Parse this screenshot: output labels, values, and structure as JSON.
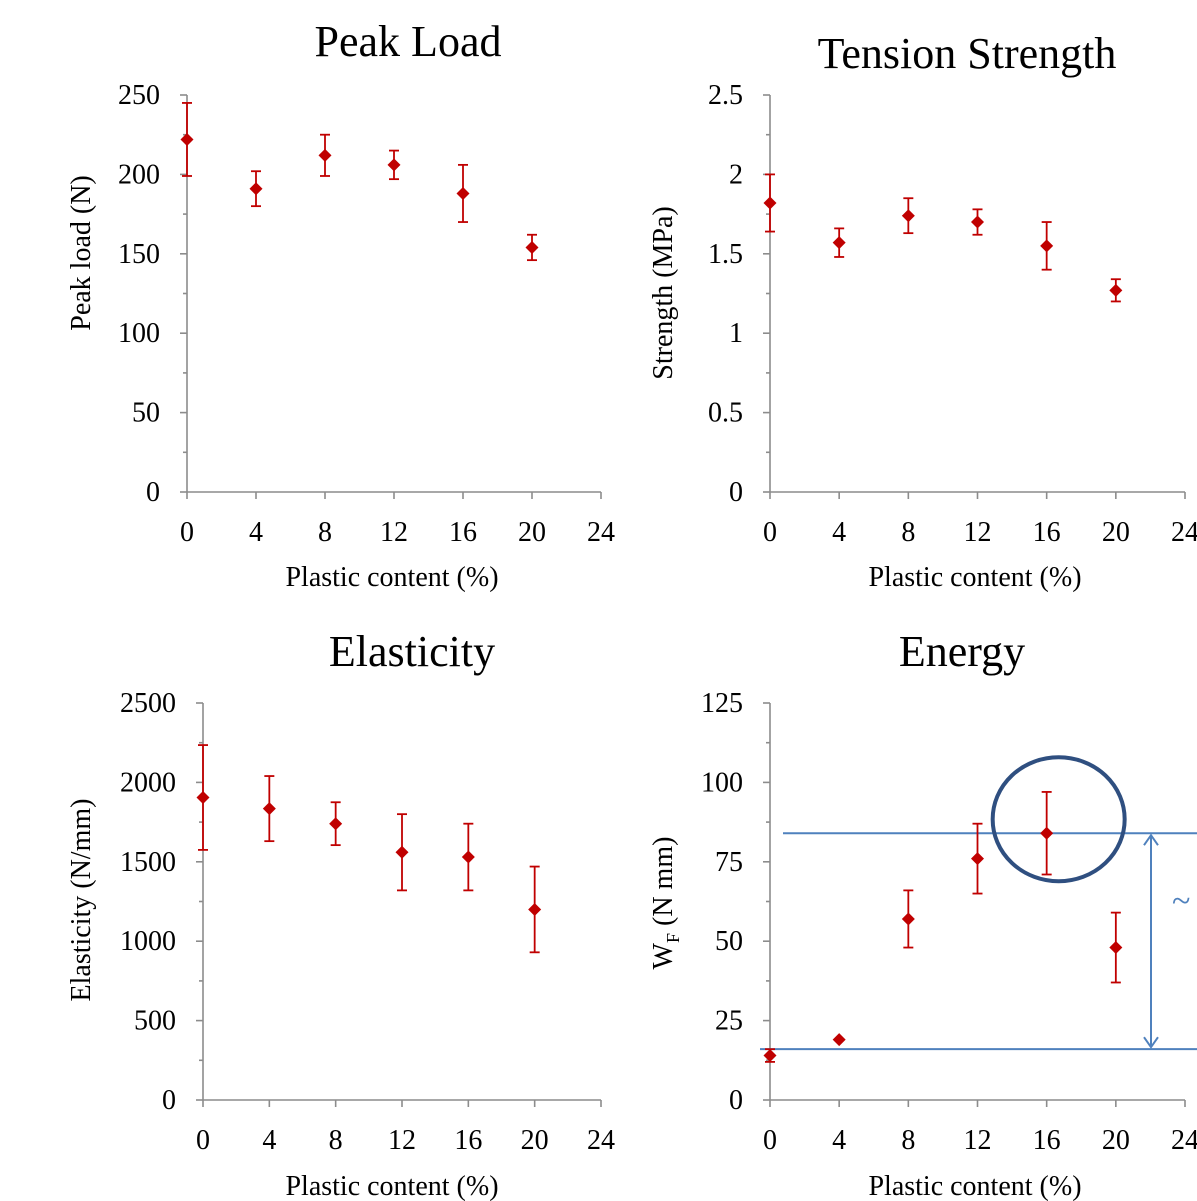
{
  "chart_data": [
    {
      "type": "scatter",
      "title": "Peak Load",
      "xlabel": "Plastic content (%)",
      "ylabel": "Peak load (N)",
      "xlim": [
        0,
        24
      ],
      "ylim": [
        0,
        250
      ],
      "xticks": [
        "0",
        "4",
        "8",
        "12",
        "16",
        "20",
        "24"
      ],
      "yticks": [
        "0",
        "50",
        "100",
        "150",
        "200",
        "250"
      ],
      "x": [
        0,
        4,
        8,
        12,
        16,
        20
      ],
      "y": [
        222,
        191,
        212,
        206,
        188,
        154
      ],
      "err": [
        23,
        11,
        13,
        9,
        18,
        8
      ],
      "colors": {
        "marker": "#c00000"
      }
    },
    {
      "type": "scatter",
      "title": "Tension Strength",
      "xlabel": "Plastic content (%)",
      "ylabel": "Strength (MPa)",
      "xlim": [
        0,
        24
      ],
      "ylim": [
        0,
        2.5
      ],
      "xticks": [
        "0",
        "4",
        "8",
        "12",
        "16",
        "20",
        "24"
      ],
      "yticks": [
        "0",
        "0.5",
        "1",
        "1.5",
        "2",
        "2.5"
      ],
      "x": [
        0,
        4,
        8,
        12,
        16,
        20
      ],
      "y": [
        1.82,
        1.57,
        1.74,
        1.7,
        1.55,
        1.27
      ],
      "err": [
        0.18,
        0.09,
        0.11,
        0.08,
        0.15,
        0.07
      ],
      "colors": {
        "marker": "#c00000"
      }
    },
    {
      "type": "scatter",
      "title": "Elasticity",
      "xlabel": "Plastic content (%)",
      "ylabel": "Elasticity (N/mm)",
      "xlim": [
        0,
        24
      ],
      "ylim": [
        0,
        2500
      ],
      "xticks": [
        "0",
        "4",
        "8",
        "12",
        "16",
        "20",
        "24"
      ],
      "yticks": [
        "0",
        "500",
        "1000",
        "1500",
        "2000",
        "2500"
      ],
      "x": [
        0,
        4,
        8,
        12,
        16,
        20
      ],
      "y": [
        1905,
        1835,
        1740,
        1560,
        1530,
        1200
      ],
      "err": [
        330,
        205,
        135,
        240,
        210,
        270
      ],
      "colors": {
        "marker": "#c00000"
      }
    },
    {
      "type": "scatter",
      "title": "Energy",
      "xlabel": "Plastic content (%)",
      "ylabel_main": "W",
      "ylabel_sub": "F",
      "ylabel_rest": " (N mm)",
      "xlim": [
        0,
        24
      ],
      "ylim": [
        0,
        125
      ],
      "xticks": [
        "0",
        "4",
        "8",
        "12",
        "16",
        "20",
        "24"
      ],
      "yticks": [
        "0",
        "25",
        "50",
        "75",
        "100",
        "125"
      ],
      "x": [
        0,
        4,
        8,
        12,
        16,
        20
      ],
      "y": [
        14,
        19,
        57,
        76,
        84,
        48
      ],
      "err": [
        2,
        0,
        9,
        11,
        13,
        11
      ],
      "annotation": {
        "upper_line_y": 84,
        "lower_line_y": 16,
        "circled_x": 16,
        "symbol": "~"
      },
      "colors": {
        "marker": "#c00000",
        "annotation": "#4f81bd"
      }
    }
  ]
}
